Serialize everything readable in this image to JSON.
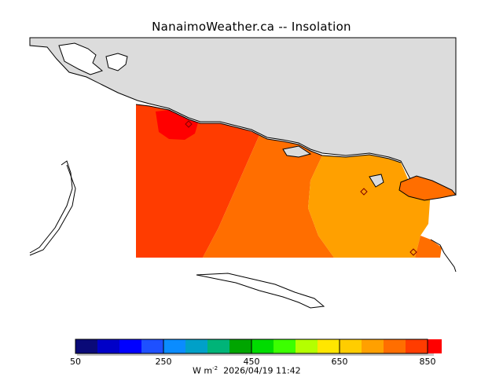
{
  "title": "NanaimoWeather.ca  --  Insolation",
  "colorbar": {
    "colors": [
      "#0a0a78",
      "#0000c8",
      "#0000ff",
      "#1e50ff",
      "#0a8cff",
      "#00a0c8",
      "#00b478",
      "#00a500",
      "#00dc00",
      "#3cff00",
      "#b4ff00",
      "#ffe600",
      "#ffcd00",
      "#ffa000",
      "#ff6e00",
      "#ff3c00",
      "#ff0000"
    ],
    "tick_labels": [
      "50",
      "250",
      "450",
      "650",
      "850"
    ],
    "units_prefix": "W m",
    "units_exponent": "-2",
    "timestamp": "2026/04/19 11:42"
  },
  "map": {
    "land_color": "#dcdcdc",
    "field_colors": [
      "#ff0000",
      "#ff3c00",
      "#ff6e00",
      "#ffa000"
    ],
    "coastline_color": "#000000"
  }
}
